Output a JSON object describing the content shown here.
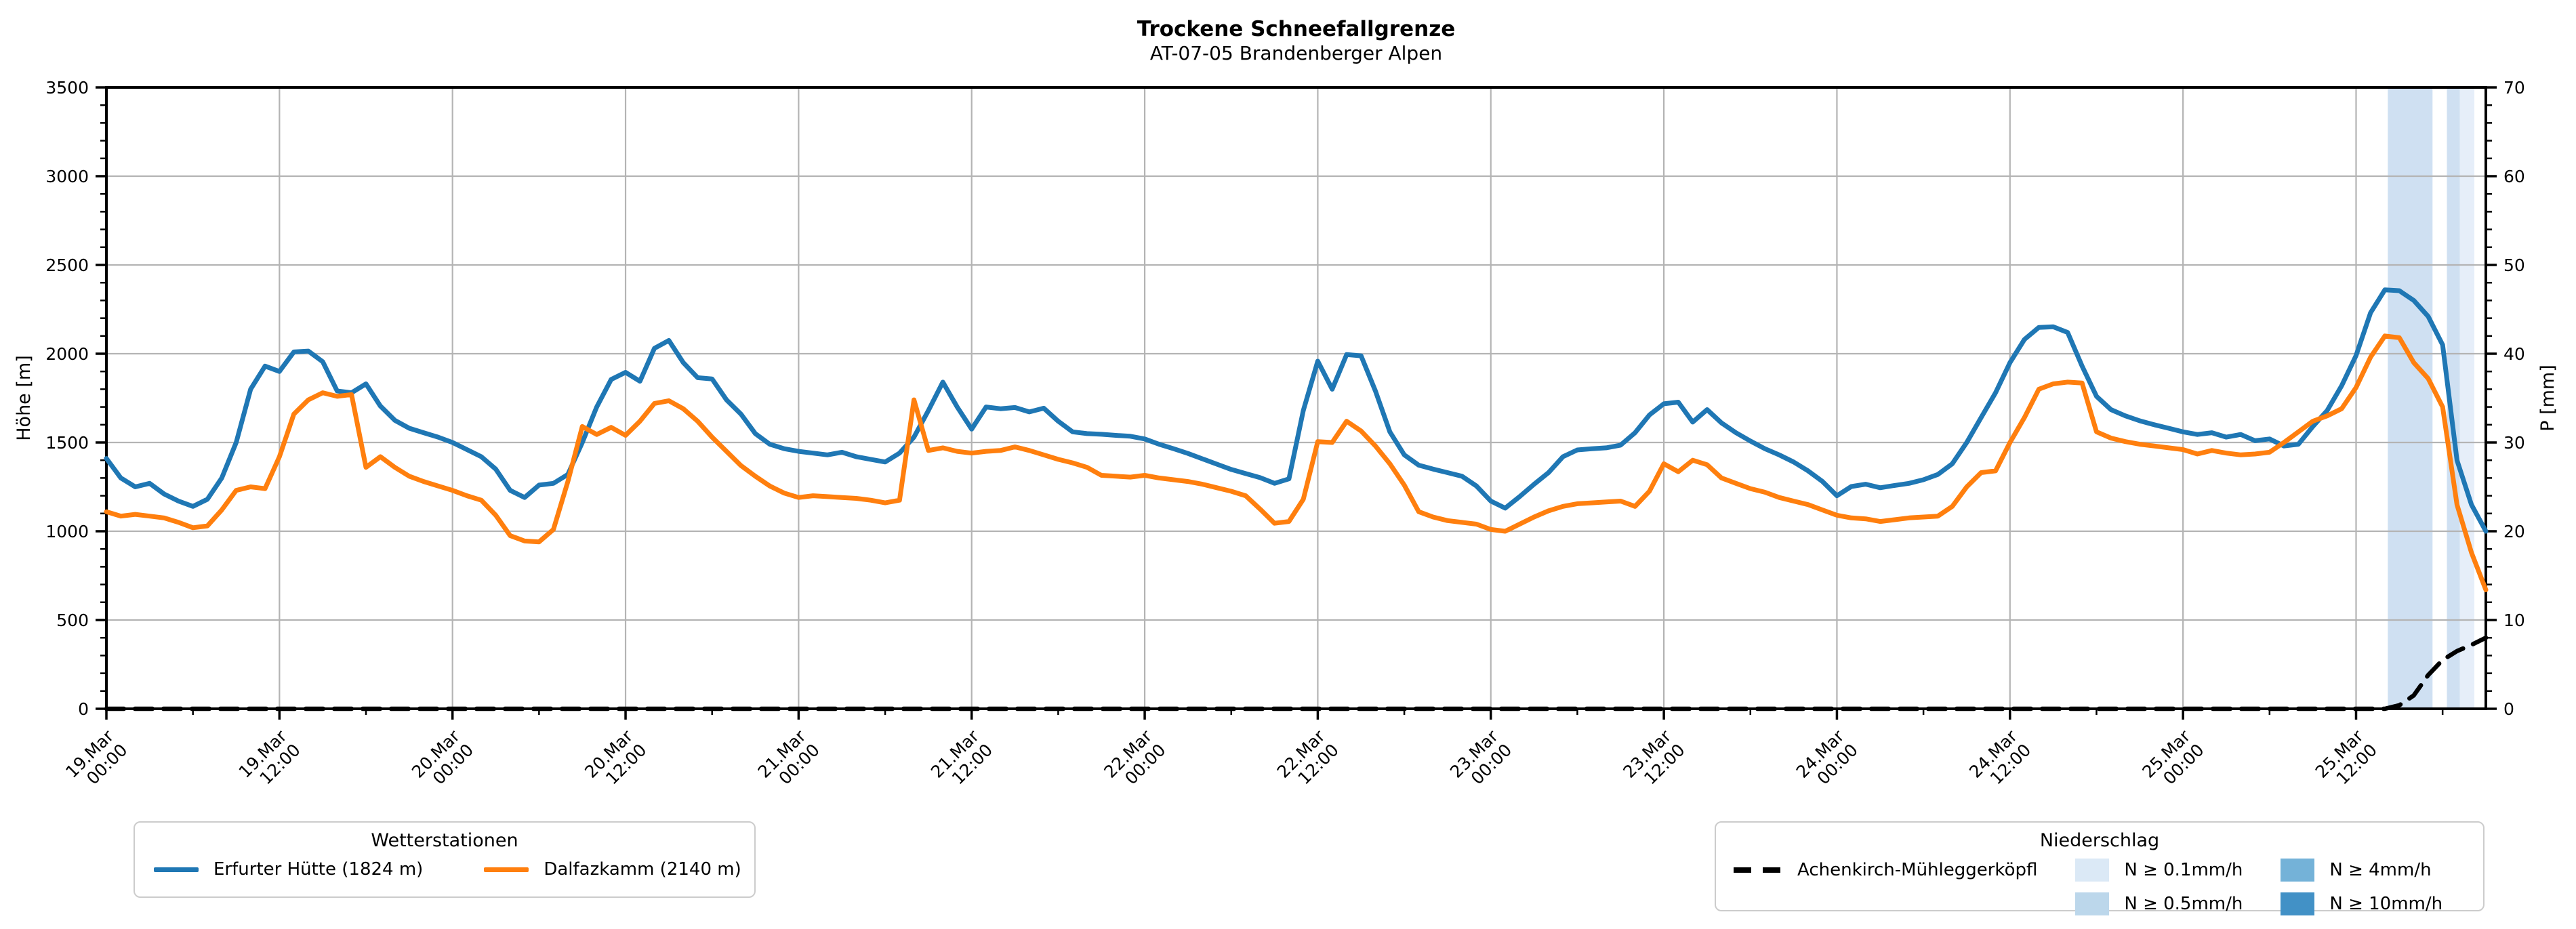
{
  "title": {
    "main": "Trockene Schneefallgrenze",
    "subtitle": "AT-07-05 Brandenberger Alpen"
  },
  "legend_stations": {
    "title": "Wetterstationen",
    "entries": [
      {
        "label": "Erfurter Hütte (1824 m)",
        "color": "#1f77b4"
      },
      {
        "label": "Dalfazkamm (2140 m)",
        "color": "#ff7f0e"
      }
    ]
  },
  "legend_precip": {
    "title": "Niederschlag",
    "station_label": "Achenkirch-Mühleggerköpfl",
    "line_color": "#000000",
    "patch_entries": [
      {
        "label": "N ≥ 0.1mm/h",
        "color": "#dbe9f6"
      },
      {
        "label": "N ≥ 0.5mm/h",
        "color": "#bcd7eb"
      },
      {
        "label": "N ≥ 4mm/h",
        "color": "#74b2d8"
      },
      {
        "label": "N ≥ 10mm/h",
        "color": "#4291c6"
      }
    ]
  },
  "chart_data": {
    "type": "line",
    "title": "Trockene Schneefallgrenze",
    "subtitle": "AT-07-05 Brandenberger Alpen",
    "grid": true,
    "x_axis": {
      "unit": "hours since 19.Mar 00:00",
      "range": [
        0,
        165
      ],
      "major_tick_h": 12,
      "minor_tick_h": 6,
      "tick_labels": [
        "19.Mar 00:00",
        "19.Mar 12:00",
        "20.Mar 00:00",
        "20.Mar 12:00",
        "21.Mar 00:00",
        "21.Mar 12:00",
        "22.Mar 00:00",
        "22.Mar 12:00",
        "23.Mar 00:00",
        "23.Mar 12:00",
        "24.Mar 00:00",
        "24.Mar 12:00",
        "25.Mar 00:00",
        "25.Mar 12:00"
      ]
    },
    "y_left": {
      "label": "Höhe [m]",
      "range": [
        0,
        3500
      ],
      "major": 500,
      "minor": 100
    },
    "y_right": {
      "label": "P [mm]",
      "range": [
        0,
        70
      ],
      "major": 10,
      "minor": 2
    },
    "series": [
      {
        "name": "Erfurter Hütte (1824 m)",
        "color": "#1f77b4",
        "style": "solid",
        "axis": "left",
        "x_step_h": 1,
        "values": [
          1410,
          1300,
          1250,
          1270,
          1210,
          1170,
          1140,
          1180,
          1300,
          1500,
          1800,
          1930,
          1900,
          2010,
          2015,
          1955,
          1790,
          1780,
          1830,
          1705,
          1625,
          1580,
          1555,
          1530,
          1500,
          1460,
          1420,
          1350,
          1230,
          1190,
          1260,
          1270,
          1320,
          1500,
          1700,
          1855,
          1895,
          1845,
          2030,
          2075,
          1950,
          1865,
          1858,
          1740,
          1660,
          1550,
          1490,
          1465,
          1450,
          1440,
          1430,
          1445,
          1420,
          1405,
          1390,
          1440,
          1530,
          1680,
          1840,
          1700,
          1575,
          1700,
          1690,
          1697,
          1672,
          1693,
          1620,
          1560,
          1550,
          1546,
          1540,
          1535,
          1520,
          1490,
          1465,
          1438,
          1408,
          1378,
          1348,
          1325,
          1302,
          1270,
          1295,
          1680,
          1958,
          1800,
          1995,
          1988,
          1790,
          1560,
          1430,
          1372,
          1350,
          1330,
          1310,
          1255,
          1170,
          1130,
          1195,
          1265,
          1330,
          1420,
          1458,
          1465,
          1470,
          1485,
          1555,
          1655,
          1718,
          1727,
          1615,
          1685,
          1610,
          1555,
          1508,
          1465,
          1430,
          1390,
          1340,
          1280,
          1200,
          1252,
          1265,
          1245,
          1258,
          1270,
          1290,
          1320,
          1380,
          1500,
          1640,
          1780,
          1950,
          2080,
          2148,
          2152,
          2120,
          1930,
          1760,
          1685,
          1650,
          1622,
          1600,
          1580,
          1560,
          1545,
          1555,
          1530,
          1545,
          1510,
          1520,
          1480,
          1490,
          1590,
          1680,
          1820,
          1990,
          2230,
          2360,
          2355,
          2300,
          2210,
          2050,
          1400,
          1150,
          1000
        ]
      },
      {
        "name": "Dalfazkamm (2140 m)",
        "color": "#ff7f0e",
        "style": "solid",
        "axis": "left",
        "x_step_h": 1,
        "values": [
          1110,
          1085,
          1095,
          1085,
          1075,
          1050,
          1020,
          1030,
          1120,
          1230,
          1250,
          1240,
          1420,
          1660,
          1740,
          1780,
          1760,
          1770,
          1360,
          1420,
          1360,
          1310,
          1280,
          1255,
          1230,
          1200,
          1175,
          1090,
          975,
          945,
          940,
          1010,
          1280,
          1590,
          1545,
          1585,
          1540,
          1620,
          1720,
          1735,
          1690,
          1620,
          1530,
          1450,
          1370,
          1310,
          1255,
          1215,
          1190,
          1200,
          1195,
          1190,
          1185,
          1175,
          1160,
          1175,
          1740,
          1455,
          1470,
          1450,
          1440,
          1450,
          1455,
          1475,
          1455,
          1430,
          1405,
          1385,
          1360,
          1315,
          1310,
          1305,
          1315,
          1300,
          1290,
          1280,
          1265,
          1245,
          1225,
          1200,
          1125,
          1045,
          1055,
          1180,
          1505,
          1500,
          1620,
          1565,
          1480,
          1380,
          1260,
          1110,
          1080,
          1060,
          1050,
          1040,
          1010,
          1000,
          1040,
          1080,
          1115,
          1140,
          1155,
          1160,
          1165,
          1170,
          1140,
          1225,
          1380,
          1335,
          1400,
          1375,
          1300,
          1270,
          1240,
          1220,
          1190,
          1170,
          1150,
          1120,
          1090,
          1075,
          1070,
          1055,
          1065,
          1075,
          1080,
          1085,
          1140,
          1250,
          1330,
          1340,
          1500,
          1640,
          1800,
          1830,
          1840,
          1835,
          1560,
          1525,
          1505,
          1490,
          1480,
          1470,
          1460,
          1435,
          1455,
          1440,
          1430,
          1435,
          1445,
          1500,
          1560,
          1620,
          1650,
          1690,
          1810,
          1980,
          2100,
          2090,
          1950,
          1860,
          1700,
          1150,
          880,
          670
        ]
      },
      {
        "name": "Achenkirch-Mühleggerköpfl",
        "color": "#000000",
        "style": "dashed",
        "axis": "right",
        "x": [
          0,
          158,
          159,
          160,
          161,
          162,
          163,
          164,
          165
        ],
        "values": [
          0,
          0,
          0.4,
          1.5,
          3.8,
          5.5,
          6.5,
          7.2,
          8.0
        ]
      }
    ],
    "precip_bands": [
      {
        "start_h": 158.2,
        "end_h": 161.3,
        "intensity": "N ≥ 0.5mm/h",
        "color": "#cfe0f2"
      },
      {
        "start_h": 162.3,
        "end_h": 163.2,
        "intensity": "N ≥ 0.5mm/h",
        "color": "#cfe0f2"
      },
      {
        "start_h": 163.2,
        "end_h": 164.2,
        "intensity": "N ≥ 0.1mm/h",
        "color": "#e6eef9"
      }
    ],
    "colors": {
      "grid": "#b4b4b4",
      "spine": "#000000"
    }
  }
}
